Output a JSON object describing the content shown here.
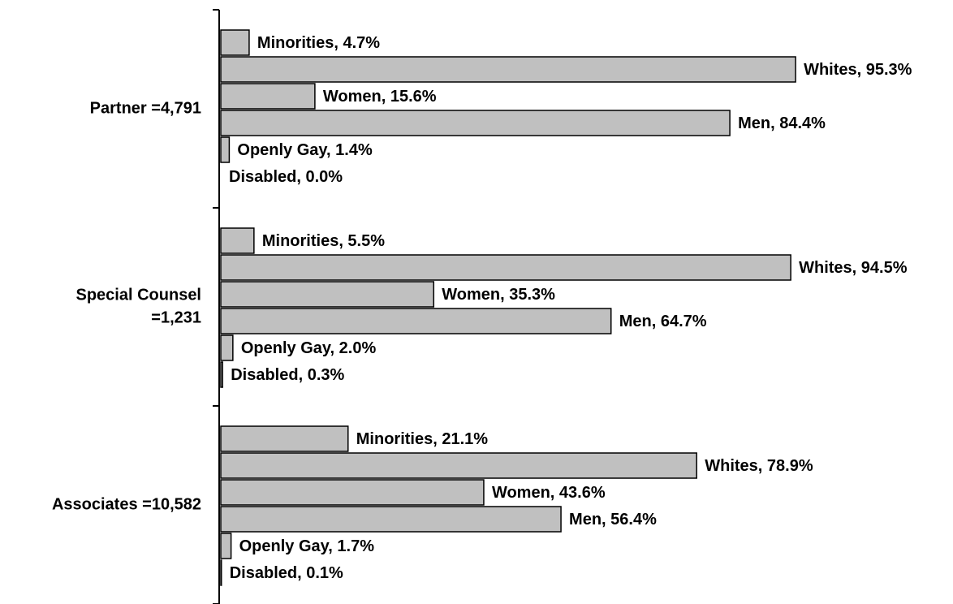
{
  "chart_data": {
    "type": "bar",
    "orientation": "horizontal",
    "categories": [
      [
        "Partner =4,791"
      ],
      [
        "Special Counsel",
        "=1,231"
      ],
      [
        "Associates =10,582"
      ]
    ],
    "color": "#c0c0c0",
    "xlim": [
      0,
      100
    ],
    "series": [
      {
        "values": [
          4.7,
          5.5,
          21.1
        ],
        "value_labels": [
          "Minorities, 4.7%",
          "Minorities, 5.5%",
          "Minorities, 21.1%"
        ]
      },
      {
        "values": [
          95.3,
          94.5,
          78.9
        ],
        "value_labels": [
          "Whites, 95.3%",
          "Whites, 94.5%",
          "Whites, 78.9%"
        ]
      },
      {
        "values": [
          15.6,
          35.3,
          43.6
        ],
        "value_labels": [
          "Women, 15.6%",
          "Women, 35.3%",
          "Women, 43.6%"
        ]
      },
      {
        "values": [
          84.4,
          64.7,
          56.4
        ],
        "value_labels": [
          "Men, 84.4%",
          "Men, 64.7%",
          "Men, 56.4%"
        ]
      },
      {
        "values": [
          1.4,
          2.0,
          1.7
        ],
        "value_labels": [
          "Openly Gay, 1.4%",
          "Openly Gay, 2.0%",
          "Openly Gay, 1.7%"
        ]
      },
      {
        "values": [
          0.0,
          0.3,
          0.1
        ],
        "value_labels": [
          "Disabled, 0.0%",
          "Disabled, 0.3%",
          "Disabled, 0.1%"
        ]
      }
    ]
  }
}
